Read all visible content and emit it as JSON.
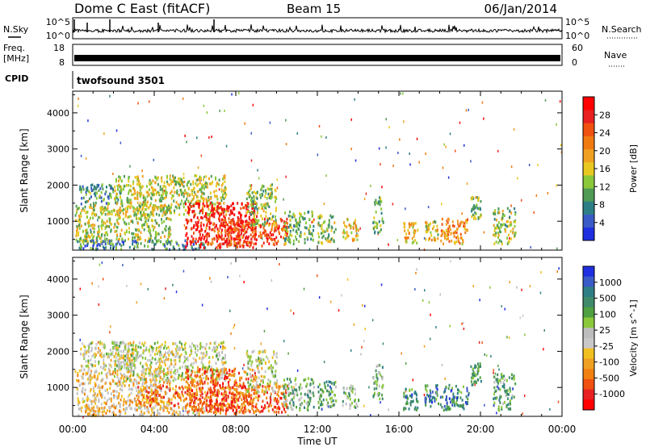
{
  "header": {
    "title": "Dome C East (fitACF)",
    "beam": "Beam 15",
    "date": "06/Jan/2014"
  },
  "strips": {
    "nsky": {
      "label": "N.Sky",
      "tick_high": "10^5",
      "tick_low": "10^0",
      "right_label": "N.Search",
      "right_tick_high": "10^5",
      "right_tick_low": "10^0"
    },
    "freq": {
      "label_line1": "Freq.",
      "label_line2": "[MHz]",
      "tick_high": "18",
      "tick_low": "8",
      "right_label": "Nave",
      "right_tick_high": "60",
      "right_tick_low": "0"
    },
    "cpid": {
      "label": "CPID",
      "text": "twofsound 3501"
    }
  },
  "chart_data": [
    {
      "type": "heatmap",
      "name": "power",
      "xlabel": "",
      "ylabel": "Slant Range [km]",
      "ylim": [
        200,
        4600
      ],
      "yticks": [
        1000,
        2000,
        3000,
        4000
      ],
      "xlim": [
        0,
        24
      ],
      "colorbar": {
        "label": "Power [dB]",
        "ticks": [
          "4",
          "8",
          "12",
          "16",
          "20",
          "24",
          "28"
        ],
        "colors": [
          "#1f2fe0",
          "#3a5ac8",
          "#2e7f85",
          "#4f9a55",
          "#8ac83a",
          "#e8c820",
          "#f0a020",
          "#f07a10",
          "#f05010",
          "#e82020",
          "#ff0000"
        ]
      },
      "clusters": [
        {
          "t0": 0.1,
          "t1": 4.8,
          "r0": 450,
          "r1": 1500,
          "level": 0.45
        },
        {
          "t0": 0.3,
          "t1": 2.5,
          "r0": 1500,
          "r1": 2050,
          "level": 0.3
        },
        {
          "t0": 2.0,
          "t1": 7.5,
          "r0": 1200,
          "r1": 2300,
          "level": 0.45
        },
        {
          "t0": 0.2,
          "t1": 6.5,
          "r0": 250,
          "r1": 500,
          "level": 0.25
        },
        {
          "t0": 5.5,
          "t1": 9.0,
          "r0": 300,
          "r1": 1550,
          "level": 0.9
        },
        {
          "t0": 6.5,
          "t1": 10.5,
          "r0": 350,
          "r1": 1100,
          "level": 0.78
        },
        {
          "t0": 8.5,
          "t1": 10.0,
          "r0": 900,
          "r1": 2050,
          "level": 0.4
        },
        {
          "t0": 10.3,
          "t1": 11.8,
          "r0": 400,
          "r1": 1300,
          "level": 0.35
        },
        {
          "t0": 12.0,
          "t1": 12.9,
          "r0": 400,
          "r1": 1200,
          "level": 0.4
        },
        {
          "t0": 13.2,
          "t1": 14.0,
          "r0": 450,
          "r1": 1100,
          "level": 0.55
        },
        {
          "t0": 14.7,
          "t1": 15.2,
          "r0": 700,
          "r1": 1700,
          "level": 0.35
        },
        {
          "t0": 16.2,
          "t1": 16.9,
          "r0": 400,
          "r1": 1000,
          "level": 0.55
        },
        {
          "t0": 17.2,
          "t1": 17.9,
          "r0": 500,
          "r1": 1100,
          "level": 0.5
        },
        {
          "t0": 18.0,
          "t1": 19.4,
          "r0": 400,
          "r1": 1100,
          "level": 0.62
        },
        {
          "t0": 19.5,
          "t1": 20.0,
          "r0": 1100,
          "r1": 1700,
          "level": 0.4
        },
        {
          "t0": 20.6,
          "t1": 21.7,
          "r0": 400,
          "r1": 1400,
          "level": 0.4
        }
      ]
    },
    {
      "type": "heatmap",
      "name": "velocity",
      "xlabel": "Time UT",
      "ylabel": "Slant Range [km]",
      "ylim": [
        200,
        4600
      ],
      "yticks": [
        1000,
        2000,
        3000,
        4000
      ],
      "xlim": [
        0,
        24
      ],
      "xticks": [
        "00:00",
        "04:00",
        "08:00",
        "12:00",
        "16:00",
        "20:00",
        "00:00"
      ],
      "colorbar": {
        "label": "Velocity [m s^-1]",
        "ticks": [
          "1000",
          "500",
          "100",
          "25",
          "-25",
          "-100",
          "-500",
          "-1000"
        ],
        "colors": [
          "#1f2fe0",
          "#3a5ac8",
          "#2e7f85",
          "#3f8a6a",
          "#4fa040",
          "#8ac83a",
          "#bdbdbd",
          "#c8c8c8",
          "#f0c020",
          "#f0a020",
          "#f08010",
          "#f05010",
          "#e82020",
          "#ff0000"
        ]
      },
      "clusters": [
        {
          "t0": 0.1,
          "t1": 4.8,
          "r0": 450,
          "r1": 1500,
          "level": 0.6
        },
        {
          "t0": 0.3,
          "t1": 3.0,
          "r0": 1500,
          "r1": 2300,
          "level": 0.5
        },
        {
          "t0": 2.0,
          "t1": 7.5,
          "r0": 1200,
          "r1": 2300,
          "level": 0.5
        },
        {
          "t0": 0.2,
          "t1": 6.5,
          "r0": 250,
          "r1": 500,
          "level": 0.6
        },
        {
          "t0": 3.0,
          "t1": 6.0,
          "r0": 500,
          "r1": 1100,
          "level": 0.75
        },
        {
          "t0": 5.5,
          "t1": 9.0,
          "r0": 300,
          "r1": 1550,
          "level": 0.78
        },
        {
          "t0": 6.5,
          "t1": 10.5,
          "r0": 350,
          "r1": 1100,
          "level": 0.8
        },
        {
          "t0": 8.5,
          "t1": 10.0,
          "r0": 900,
          "r1": 2050,
          "level": 0.5
        },
        {
          "t0": 10.3,
          "t1": 11.8,
          "r0": 400,
          "r1": 1300,
          "level": 0.36
        },
        {
          "t0": 12.0,
          "t1": 12.9,
          "r0": 400,
          "r1": 1200,
          "level": 0.3
        },
        {
          "t0": 13.2,
          "t1": 14.0,
          "r0": 450,
          "r1": 1100,
          "level": 0.38
        },
        {
          "t0": 14.7,
          "t1": 15.2,
          "r0": 700,
          "r1": 1700,
          "level": 0.34
        },
        {
          "t0": 16.2,
          "t1": 16.9,
          "r0": 400,
          "r1": 1000,
          "level": 0.22
        },
        {
          "t0": 17.2,
          "t1": 17.9,
          "r0": 500,
          "r1": 1100,
          "level": 0.22
        },
        {
          "t0": 18.0,
          "t1": 19.4,
          "r0": 400,
          "r1": 1100,
          "level": 0.22
        },
        {
          "t0": 19.5,
          "t1": 20.0,
          "r0": 1100,
          "r1": 1700,
          "level": 0.32
        },
        {
          "t0": 20.6,
          "t1": 21.7,
          "r0": 400,
          "r1": 1400,
          "level": 0.3
        }
      ]
    }
  ]
}
